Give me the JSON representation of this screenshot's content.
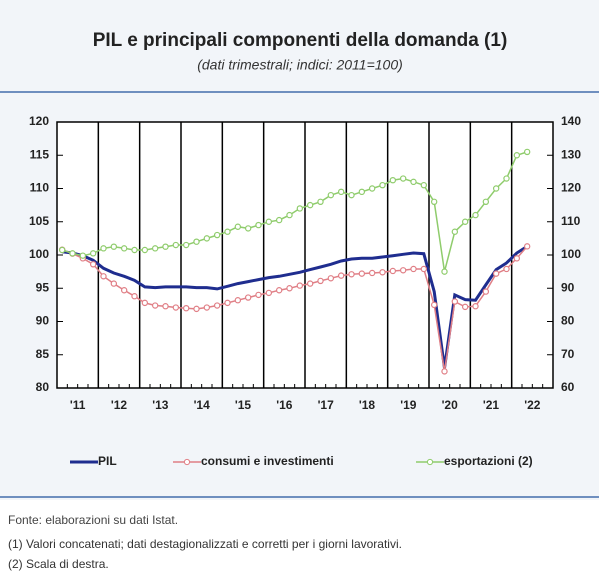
{
  "chart_data": {
    "type": "line",
    "title": "PIL e principali componenti della domanda (1)",
    "subtitle": "(dati trimestrali; indici: 2011=100)",
    "categories": [
      null,
      "'11",
      null,
      null,
      null,
      "'12",
      null,
      null,
      null,
      "'13",
      null,
      null,
      null,
      "'14",
      null,
      null,
      null,
      "'15",
      null,
      null,
      null,
      "'16",
      null,
      null,
      null,
      "'17",
      null,
      null,
      null,
      "'18",
      null,
      null,
      null,
      "'19",
      null,
      null,
      null,
      "'20",
      null,
      null,
      null,
      "'21",
      null,
      null,
      null,
      "'22"
    ],
    "ylim": [
      80,
      120
    ],
    "yticks": [
      80,
      85,
      90,
      95,
      100,
      105,
      110,
      115,
      120
    ],
    "y2lim": [
      60,
      140
    ],
    "y2ticks": [
      60,
      70,
      80,
      90,
      100,
      110,
      120,
      130,
      140
    ],
    "series": [
      {
        "name": "PIL",
        "color": "#1f2d8f",
        "values": [
          100.5,
          100.3,
          99.9,
          99.2,
          98.0,
          97.3,
          96.8,
          96.2,
          95.2,
          95.1,
          95.2,
          95.2,
          95.2,
          95.1,
          95.1,
          94.9,
          95.3,
          95.7,
          96.0,
          96.3,
          96.6,
          96.8,
          97.1,
          97.4,
          97.8,
          98.2,
          98.6,
          99.1,
          99.4,
          99.5,
          99.5,
          99.7,
          99.9,
          100.1,
          100.3,
          100.2,
          94.5,
          83.0,
          94.0,
          93.3,
          93.2,
          95.5,
          97.8,
          98.8,
          100.3,
          101.3
        ]
      },
      {
        "name": "consumi e investimenti",
        "color": "#e07f86",
        "values": [
          100.8,
          100.2,
          99.5,
          98.6,
          96.8,
          95.7,
          94.7,
          93.8,
          92.8,
          92.4,
          92.3,
          92.1,
          92.0,
          91.9,
          92.1,
          92.4,
          92.8,
          93.2,
          93.6,
          94.0,
          94.3,
          94.7,
          95.0,
          95.4,
          95.7,
          96.1,
          96.5,
          96.9,
          97.1,
          97.2,
          97.3,
          97.4,
          97.6,
          97.7,
          97.9,
          97.9,
          92.5,
          82.5,
          93.0,
          92.2,
          92.3,
          94.5,
          97.2,
          97.9,
          99.5,
          101.3
        ]
      },
      {
        "name": "esportazioni (2)",
        "color": "#8fcc6c",
        "axis": "y2",
        "values": [
          101.5,
          100.5,
          99.8,
          100.5,
          102,
          102.5,
          102,
          101.5,
          101.5,
          102,
          102.5,
          103,
          103,
          104,
          105,
          106,
          107,
          108.5,
          108,
          109,
          110,
          110.5,
          112,
          114,
          115,
          116,
          118,
          119,
          118,
          119,
          120,
          121,
          122.5,
          123,
          122,
          121,
          116,
          95,
          107,
          110,
          112,
          116,
          120,
          123,
          130,
          131
        ]
      }
    ]
  },
  "notes": [
    "Fonte: elaborazioni su dati Istat.",
    "(1) Valori concatenati; dati destagionalizzati e corretti per i giorni lavorativi.",
    "(2) Scala di destra."
  ]
}
